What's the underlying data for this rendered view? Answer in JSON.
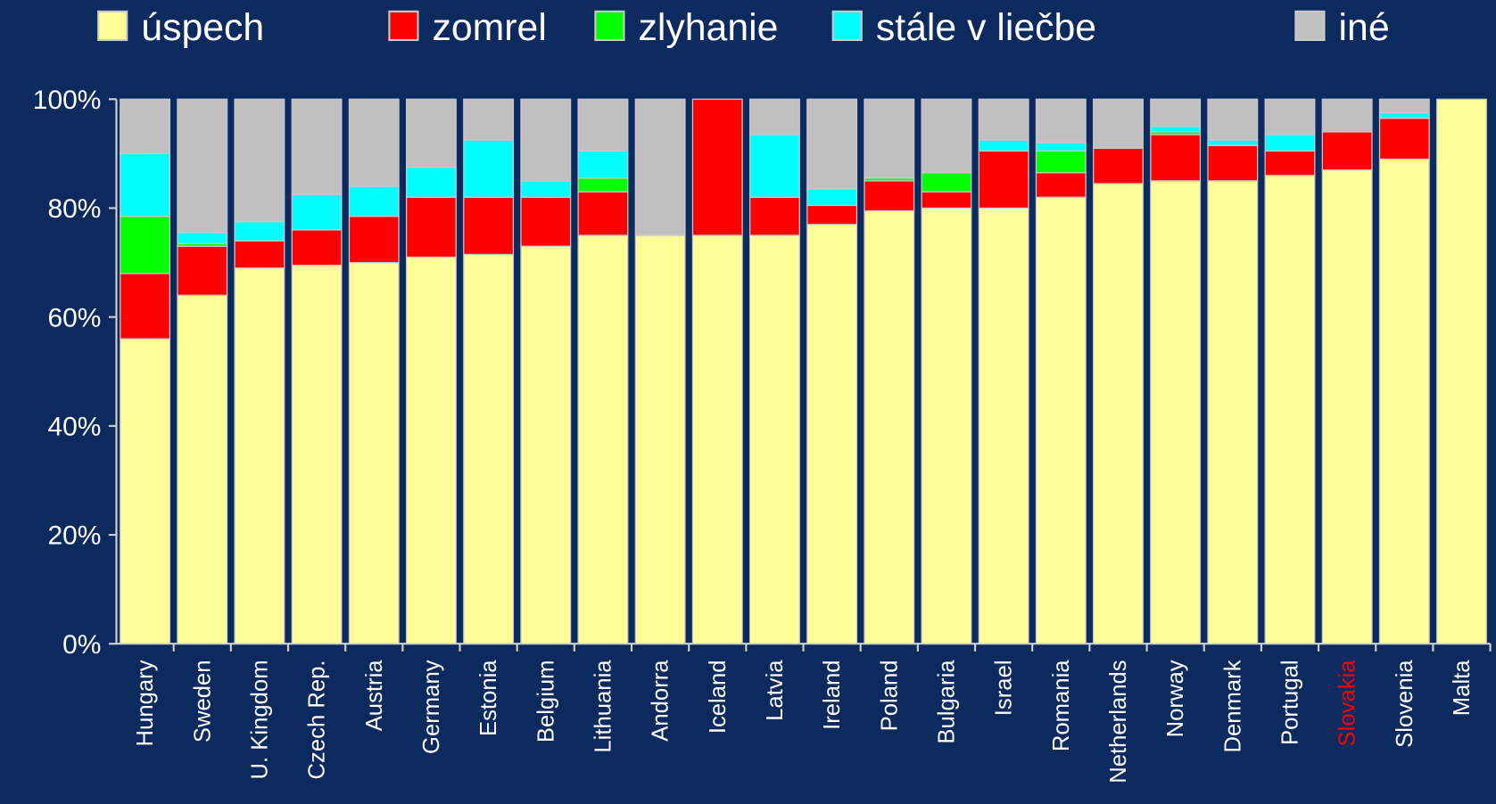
{
  "chart_data": {
    "type": "stacked_bar",
    "categories": [
      "Hungary",
      "Sweden",
      "U. Kingdom",
      "Czech Rep.",
      "Austria",
      "Germany",
      "Estonia",
      "Belgium",
      "Lithuania",
      "Andorra",
      "Iceland",
      "Latvia",
      "Ireland",
      "Poland",
      "Bulgaria",
      "Israel",
      "Romania",
      "Netherlands",
      "Norway",
      "Denmark",
      "Portugal",
      "Slovakia",
      "Slovenia",
      "Malta"
    ],
    "series": [
      {
        "name": "úspech",
        "color": "#ffff99",
        "values": [
          56,
          64,
          69,
          69.5,
          70,
          71,
          71.5,
          73,
          75,
          75,
          75,
          75,
          77,
          79.5,
          80,
          80,
          82,
          84.5,
          85,
          85,
          86,
          87,
          89,
          100
        ]
      },
      {
        "name": "zomrel",
        "color": "#ff0000",
        "values": [
          12,
          9,
          5,
          6.5,
          8.5,
          11,
          10.5,
          9,
          8,
          0,
          25,
          7,
          3.5,
          5.5,
          3,
          10.5,
          4.5,
          6.5,
          8.5,
          6.5,
          4.5,
          7,
          7.5,
          0
        ]
      },
      {
        "name": "zlyhanie",
        "color": "#00ff00",
        "values": [
          10.5,
          0.5,
          0,
          0,
          0,
          0,
          0,
          0,
          2.5,
          0,
          0,
          0,
          0,
          0.5,
          3.5,
          0,
          4,
          0,
          0.5,
          0,
          0,
          0,
          0,
          0
        ]
      },
      {
        "name": "stále v liečbe",
        "color": "#00ffff",
        "values": [
          11.5,
          2,
          3.5,
          6.5,
          5.5,
          5.5,
          10.5,
          3,
          5,
          0,
          0,
          11.5,
          3,
          0,
          0,
          2,
          1.5,
          0,
          1,
          1,
          3,
          0,
          1,
          0
        ]
      },
      {
        "name": "iné",
        "color": "#c0c0c0",
        "values": [
          10,
          24.5,
          22.5,
          17.5,
          16,
          12.5,
          7.5,
          15,
          9.5,
          25,
          0,
          6.5,
          16.5,
          14.5,
          13.5,
          7.5,
          8,
          9,
          5,
          7.5,
          6.5,
          6,
          2.5,
          0
        ]
      }
    ],
    "ylim": [
      0,
      100
    ],
    "yticks": [
      {
        "value": 0,
        "label": "0%"
      },
      {
        "value": 20,
        "label": "20%"
      },
      {
        "value": 40,
        "label": "40%"
      },
      {
        "value": 60,
        "label": "60%"
      },
      {
        "value": 80,
        "label": "80%"
      },
      {
        "value": 100,
        "label": "100%"
      }
    ],
    "highlight": "Slovakia",
    "highlight_color": "#ff0000",
    "legend": "top"
  }
}
